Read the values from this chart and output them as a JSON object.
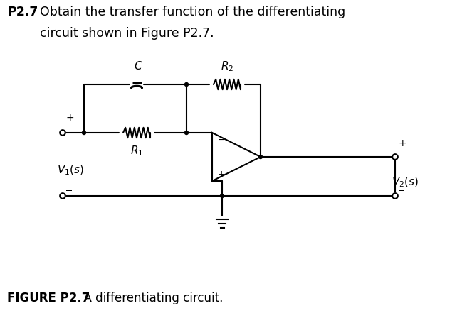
{
  "title_bold": "P2.7",
  "title_text": "Obtain the transfer function of the differentiating\n       circuit shown in Figure P2.7.",
  "figure_label_bold": "FIGURE P2.7",
  "figure_label_text": "  A differentiating circuit.",
  "bg_color": "#ffffff",
  "line_color": "#000000",
  "font_size_title": 12.5,
  "font_size_label": 12,
  "font_size_component": 11
}
